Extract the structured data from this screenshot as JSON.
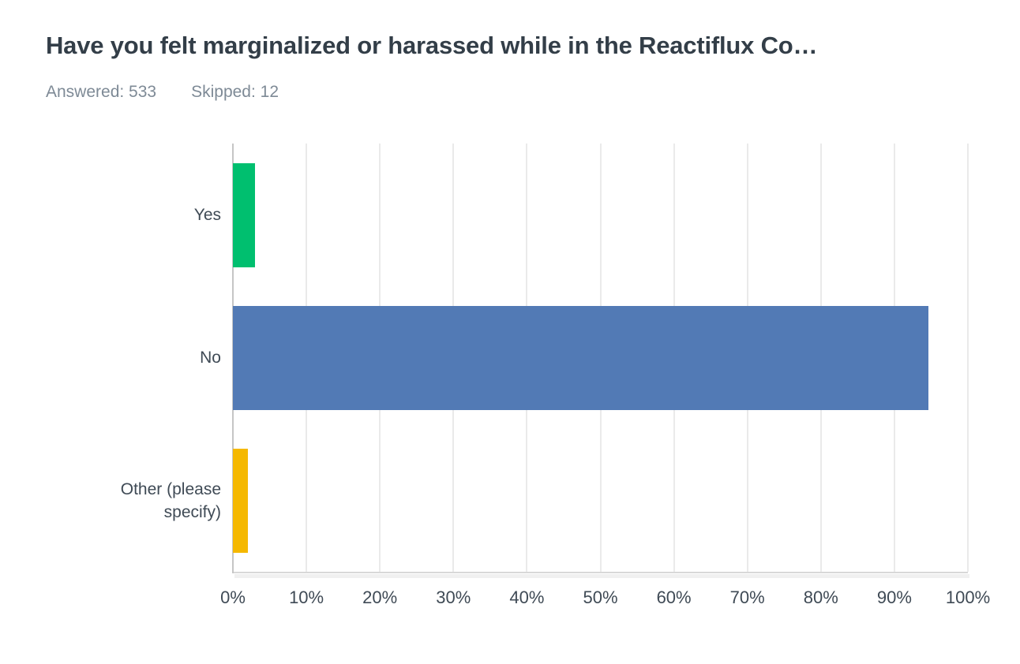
{
  "header": {
    "title": "Have you felt marginalized or harassed while in the Reactiflux Co…",
    "answered_label": "Answered: 533",
    "skipped_label": "Skipped: 12"
  },
  "chart_data": {
    "type": "bar",
    "orientation": "horizontal",
    "title": "Have you felt marginalized or harassed while in the Reactiflux Co…",
    "categories": [
      "Yes",
      "No",
      "Other (please specify)"
    ],
    "values": [
      3,
      94.6,
      2
    ],
    "value_unit": "percent",
    "series_colors": [
      "#00bf6f",
      "#527ab5",
      "#f5b800"
    ],
    "xlim": [
      0,
      100
    ],
    "x_tick_step": 10,
    "x_tick_labels": [
      "0%",
      "10%",
      "20%",
      "30%",
      "40%",
      "50%",
      "60%",
      "70%",
      "80%",
      "90%",
      "100%"
    ],
    "grid": "vertical-gridlines-on",
    "legend": "none",
    "answered": 533,
    "skipped": 12
  },
  "colors": {
    "title_text": "#333e48",
    "muted_text": "#7e8a96",
    "axis_text": "#3f4a55",
    "gridline": "#eaeaea",
    "axis_line": "#c6c6c6",
    "bottom_axis_line": "#d8d8d8"
  }
}
